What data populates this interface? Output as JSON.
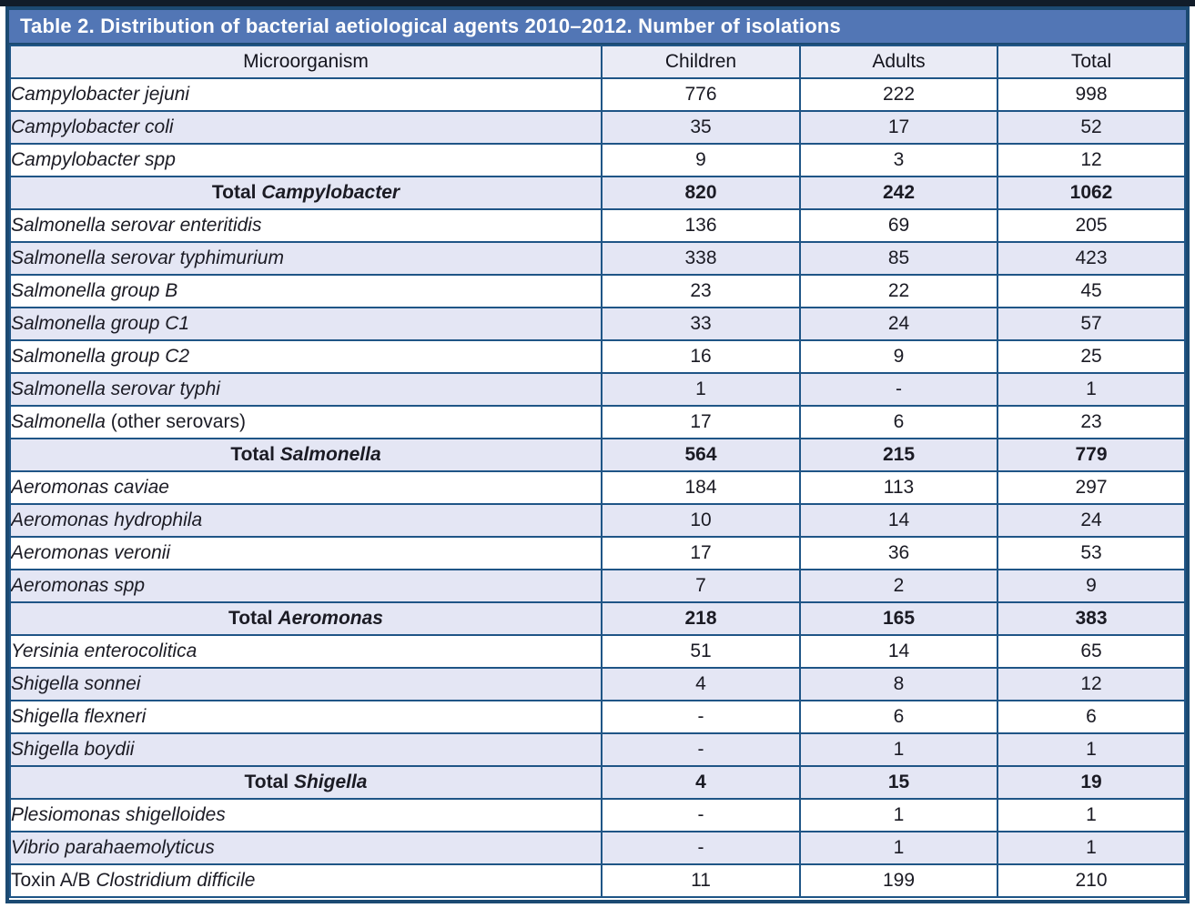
{
  "title": {
    "text": "Table 2. Distribution of bacterial aetiological agents 2010–2012. Number of isolations"
  },
  "colors": {
    "title_bar": "#5276b5",
    "frame_border": "#1c4a72",
    "grid_line": "#1f5586",
    "header_row_bg": "#eaebf5",
    "shaded_row_bg": "#e4e6f4",
    "top_strip": "#111c29"
  },
  "table": {
    "columns": [
      "Microorganism",
      "Children",
      "Adults",
      "Total"
    ],
    "rows": [
      {
        "type": "data",
        "name": [
          {
            "t": "Campylobacter jejuni",
            "i": true
          }
        ],
        "values": [
          "776",
          "222",
          "998"
        ]
      },
      {
        "type": "data",
        "name": [
          {
            "t": "Campylobacter coli",
            "i": true
          }
        ],
        "values": [
          "35",
          "17",
          "52"
        ]
      },
      {
        "type": "data",
        "name": [
          {
            "t": "Campylobacter spp",
            "i": true
          }
        ],
        "values": [
          "9",
          "3",
          "12"
        ]
      },
      {
        "type": "total",
        "name": [
          {
            "t": "Total ",
            "i": false
          },
          {
            "t": "Campylobacter",
            "i": true
          }
        ],
        "values": [
          "820",
          "242",
          "1062"
        ]
      },
      {
        "type": "data",
        "name": [
          {
            "t": "Salmonella serovar enteritidis",
            "i": true
          }
        ],
        "values": [
          "136",
          "69",
          "205"
        ]
      },
      {
        "type": "data",
        "name": [
          {
            "t": "Salmonella serovar typhimurium",
            "i": true
          }
        ],
        "values": [
          "338",
          "85",
          "423"
        ]
      },
      {
        "type": "data",
        "name": [
          {
            "t": "Salmonella group B",
            "i": true
          }
        ],
        "values": [
          "23",
          "22",
          "45"
        ]
      },
      {
        "type": "data",
        "name": [
          {
            "t": "Salmonella group C1",
            "i": true
          }
        ],
        "values": [
          "33",
          "24",
          "57"
        ]
      },
      {
        "type": "data",
        "name": [
          {
            "t": "Salmonella group C2",
            "i": true
          }
        ],
        "values": [
          "16",
          "9",
          "25"
        ]
      },
      {
        "type": "data",
        "name": [
          {
            "t": "Salmonella serovar typhi",
            "i": true
          }
        ],
        "values": [
          "1",
          "-",
          "1"
        ]
      },
      {
        "type": "data",
        "name": [
          {
            "t": "Salmonella",
            "i": true
          },
          {
            "t": " (other serovars)",
            "i": false
          }
        ],
        "values": [
          "17",
          "6",
          "23"
        ]
      },
      {
        "type": "total",
        "name": [
          {
            "t": "Total ",
            "i": false
          },
          {
            "t": "Salmonella",
            "i": true
          }
        ],
        "values": [
          "564",
          "215",
          "779"
        ]
      },
      {
        "type": "data",
        "name": [
          {
            "t": "Aeromonas caviae",
            "i": true
          }
        ],
        "values": [
          "184",
          "113",
          "297"
        ]
      },
      {
        "type": "data",
        "name": [
          {
            "t": "Aeromonas hydrophila",
            "i": true
          }
        ],
        "values": [
          "10",
          "14",
          "24"
        ]
      },
      {
        "type": "data",
        "name": [
          {
            "t": "Aeromonas veronii",
            "i": true
          }
        ],
        "values": [
          "17",
          "36",
          "53"
        ]
      },
      {
        "type": "data",
        "name": [
          {
            "t": "Aeromonas spp",
            "i": true
          }
        ],
        "values": [
          "7",
          "2",
          "9"
        ]
      },
      {
        "type": "total",
        "name": [
          {
            "t": "Total ",
            "i": false
          },
          {
            "t": "Aeromonas",
            "i": true
          }
        ],
        "values": [
          "218",
          "165",
          "383"
        ]
      },
      {
        "type": "data",
        "name": [
          {
            "t": "Yersinia enterocolitica",
            "i": true
          }
        ],
        "values": [
          "51",
          "14",
          "65"
        ]
      },
      {
        "type": "data",
        "name": [
          {
            "t": "Shigella sonnei",
            "i": true
          }
        ],
        "values": [
          "4",
          "8",
          "12"
        ]
      },
      {
        "type": "data",
        "name": [
          {
            "t": "Shigella flexneri",
            "i": true
          }
        ],
        "values": [
          "-",
          "6",
          "6"
        ]
      },
      {
        "type": "data",
        "name": [
          {
            "t": "Shigella boydii",
            "i": true
          }
        ],
        "values": [
          "-",
          "1",
          "1"
        ]
      },
      {
        "type": "total",
        "name": [
          {
            "t": "Total ",
            "i": false
          },
          {
            "t": "Shigella",
            "i": true
          }
        ],
        "values": [
          "4",
          "15",
          "19"
        ]
      },
      {
        "type": "data",
        "name": [
          {
            "t": "Plesiomonas shigelloides",
            "i": true
          }
        ],
        "values": [
          "-",
          "1",
          "1"
        ]
      },
      {
        "type": "data",
        "name": [
          {
            "t": "Vibrio parahaemolyticus",
            "i": true
          }
        ],
        "values": [
          "-",
          "1",
          "1"
        ]
      },
      {
        "type": "data",
        "name": [
          {
            "t": "Toxin A/B ",
            "i": false
          },
          {
            "t": "Clostridium difficile",
            "i": true
          }
        ],
        "values": [
          "11",
          "199",
          "210"
        ]
      }
    ]
  }
}
